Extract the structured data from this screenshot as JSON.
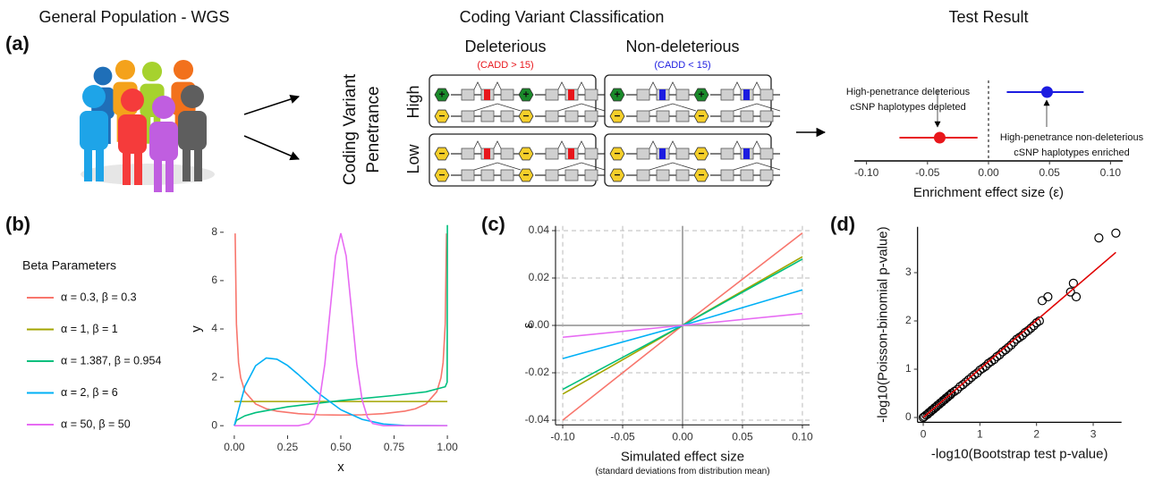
{
  "panel_labels": [
    "(a)",
    "(b)",
    "(c)",
    "(d)"
  ],
  "diagram": {
    "population_title": "General Population - WGS",
    "classification_title": "Coding Variant Classification",
    "columns": [
      {
        "label": "Deleterious",
        "criterion": "(CADD > 15)"
      },
      {
        "label": "Non-deleterious",
        "criterion": "(CADD < 15)"
      }
    ],
    "penetrance_label": [
      "Coding Variant",
      "Penetrance"
    ],
    "rows": [
      "High",
      "Low"
    ],
    "plus": "+",
    "minus": "−"
  },
  "chart_data": [
    {
      "type": "forest",
      "title": "Test Result",
      "xlabel": "Enrichment effect size (ε)",
      "xlim": [
        -0.11,
        0.11
      ],
      "xticks": [
        {
          "value": -0.1,
          "label": "-0.10"
        },
        {
          "value": -0.05,
          "label": "-0.05"
        },
        {
          "value": 0,
          "label": "0.00"
        },
        {
          "value": 0.05,
          "label": "0.05"
        },
        {
          "value": 0.1,
          "label": "0.10"
        }
      ],
      "reference_x": 0,
      "points": [
        {
          "value": -0.04,
          "lower": -0.073,
          "upper": -0.009,
          "color": "#e8161b"
        },
        {
          "value": 0.048,
          "lower": 0.015,
          "upper": 0.078,
          "color": "#1c1ce0"
        }
      ],
      "annotations": [
        {
          "lines": [
            "High-penetrance deleterious",
            "cSNP haplotypes depleted"
          ]
        },
        {
          "lines": [
            "High-penetrance non-deleterious",
            "cSNP haplotypes enriched"
          ]
        }
      ]
    },
    {
      "type": "line",
      "xlabel": "x",
      "ylabel": "y",
      "legend_title": "Beta Parameters",
      "legend": "left",
      "xlim": [
        -0.05,
        1.05
      ],
      "ylim": [
        -0.4,
        8.4
      ],
      "xticks": [
        {
          "value": 0,
          "label": "0.00"
        },
        0.25,
        {
          "value": 0.5,
          "label": "0.50"
        },
        0.75,
        {
          "value": 1,
          "label": "1.00"
        }
      ],
      "yticks": [
        0,
        2,
        4,
        6,
        8
      ],
      "series": [
        {
          "name": "α = 0.3, β = 0.3",
          "color": "#F8766D",
          "x": [
            0.004,
            0.01,
            0.02,
            0.03,
            0.05,
            0.1,
            0.15,
            0.2,
            0.3,
            0.4,
            0.5,
            0.6,
            0.7,
            0.8,
            0.85,
            0.9,
            0.95,
            0.97,
            0.98,
            0.99,
            0.996
          ],
          "values": [
            7.95,
            4.21,
            2.61,
            1.98,
            1.4,
            0.9,
            0.7,
            0.6,
            0.5,
            0.45,
            0.44,
            0.45,
            0.5,
            0.6,
            0.7,
            0.9,
            1.4,
            1.98,
            2.61,
            4.21,
            7.95
          ]
        },
        {
          "name": "α = 1, β = 1",
          "color": "#A3A500",
          "x": [
            0,
            1
          ],
          "values": [
            1,
            1
          ]
        },
        {
          "name": "α = 1.387, β = 0.954",
          "color": "#00BF7D",
          "x": [
            0,
            0.01,
            0.05,
            0.1,
            0.25,
            0.5,
            0.75,
            0.9,
            0.99,
            0.999,
            1
          ],
          "values": [
            0,
            0.22,
            0.41,
            0.54,
            0.78,
            1.04,
            1.25,
            1.4,
            1.61,
            1.8,
            8.3
          ]
        },
        {
          "name": "α = 2, β = 6",
          "color": "#00B0F6",
          "x": [
            0,
            0.05,
            0.1,
            0.15,
            0.2,
            0.25,
            0.3,
            0.4,
            0.5,
            0.6,
            0.7,
            0.8,
            1
          ],
          "values": [
            0,
            1.63,
            2.48,
            2.8,
            2.75,
            2.49,
            2.12,
            1.31,
            0.66,
            0.26,
            0.07,
            0.01,
            0
          ]
        },
        {
          "name": "α = 50, β = 50",
          "color": "#E76BF3",
          "x": [
            0,
            0.3,
            0.35,
            0.375,
            0.4,
            0.425,
            0.45,
            0.475,
            0.5,
            0.525,
            0.55,
            0.575,
            0.6,
            0.625,
            0.65,
            0.7,
            1
          ],
          "values": [
            0,
            0,
            0.09,
            0.34,
            1.06,
            2.55,
            4.8,
            7.02,
            7.96,
            7.02,
            4.8,
            2.55,
            1.06,
            0.34,
            0.09,
            0,
            0
          ]
        }
      ]
    },
    {
      "type": "line",
      "xlabel": "Simulated effect size",
      "xlabel_note": "(standard deviations from distribution mean)",
      "ylabel": "ε",
      "grid": true,
      "zero_lines": true,
      "xlim": [
        -0.106,
        0.106
      ],
      "ylim": [
        -0.042,
        0.042
      ],
      "xticks": [
        {
          "value": -0.1,
          "label": "-0.10"
        },
        {
          "value": -0.05,
          "label": "-0.05"
        },
        {
          "value": 0,
          "label": "0.00"
        },
        {
          "value": 0.05,
          "label": "0.05"
        },
        {
          "value": 0.1,
          "label": "0.10"
        }
      ],
      "yticks": [
        {
          "value": -0.04,
          "label": "-0.04"
        },
        {
          "value": -0.02,
          "label": "-0.02"
        },
        {
          "value": 0,
          "label": "0.00"
        },
        {
          "value": 0.02,
          "label": "0.02"
        },
        {
          "value": 0.04,
          "label": "0.04"
        }
      ],
      "series": [
        {
          "color": "#F8766D",
          "x": [
            -0.1,
            0,
            0.1
          ],
          "values": [
            -0.04,
            0,
            0.039
          ]
        },
        {
          "color": "#A3A500",
          "x": [
            -0.1,
            0,
            0.1
          ],
          "values": [
            -0.029,
            0,
            0.029
          ]
        },
        {
          "color": "#00BF7D",
          "x": [
            -0.1,
            0,
            0.1
          ],
          "values": [
            -0.027,
            0,
            0.028
          ]
        },
        {
          "color": "#00B0F6",
          "x": [
            -0.1,
            0,
            0.1
          ],
          "values": [
            -0.014,
            0,
            0.015
          ]
        },
        {
          "color": "#E76BF3",
          "x": [
            -0.1,
            0,
            0.1
          ],
          "values": [
            -0.005,
            0,
            0.005
          ]
        }
      ]
    },
    {
      "type": "scatter",
      "xlabel": "-log10(Bootstrap test p-value)",
      "ylabel": "-log10(Poisson-binomial p-value)",
      "xlim": [
        -0.1,
        3.5
      ],
      "ylim": [
        -0.1,
        3.95
      ],
      "xticks": [
        0,
        1,
        2,
        3
      ],
      "yticks": [
        0,
        1,
        2,
        3
      ],
      "color": "#000000",
      "fit_color": "#e00000",
      "fit_x": [
        0,
        3.4
      ],
      "fit_y": [
        0,
        3.42
      ],
      "x": [
        0,
        0.02,
        0.05,
        0.08,
        0.1,
        0.13,
        0.15,
        0.18,
        0.2,
        0.23,
        0.25,
        0.28,
        0.3,
        0.33,
        0.35,
        0.38,
        0.4,
        0.43,
        0.45,
        0.48,
        0.5,
        0.55,
        0.6,
        0.65,
        0.7,
        0.75,
        0.8,
        0.85,
        0.9,
        0.95,
        1.0,
        1.05,
        1.1,
        1.15,
        1.2,
        1.25,
        1.3,
        1.35,
        1.4,
        1.45,
        1.5,
        1.55,
        1.6,
        1.65,
        1.7,
        1.75,
        1.8,
        1.85,
        1.9,
        1.95,
        2.0,
        2.05,
        2.1,
        2.2,
        2.6,
        2.65,
        2.7,
        3.1,
        3.4
      ],
      "values": [
        0,
        0.02,
        0.05,
        0.07,
        0.1,
        0.12,
        0.15,
        0.17,
        0.2,
        0.22,
        0.25,
        0.27,
        0.3,
        0.32,
        0.35,
        0.37,
        0.4,
        0.42,
        0.45,
        0.47,
        0.5,
        0.54,
        0.58,
        0.64,
        0.68,
        0.73,
        0.78,
        0.83,
        0.88,
        0.92,
        0.98,
        1.02,
        1.06,
        1.12,
        1.16,
        1.2,
        1.26,
        1.3,
        1.36,
        1.4,
        1.45,
        1.5,
        1.56,
        1.62,
        1.66,
        1.7,
        1.76,
        1.8,
        1.85,
        1.9,
        1.96,
        2.0,
        2.42,
        2.5,
        2.6,
        2.78,
        2.5,
        3.72,
        3.82
      ]
    }
  ]
}
